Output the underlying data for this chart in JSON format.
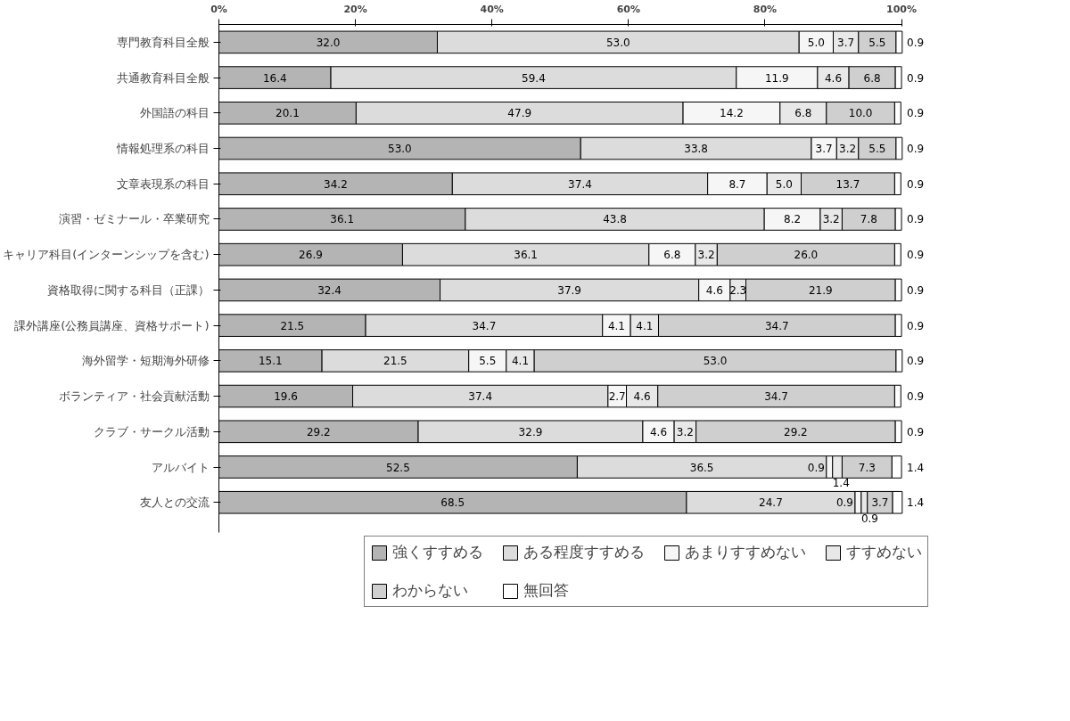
{
  "chart_data": {
    "type": "bar",
    "orientation": "horizontal",
    "stacked": true,
    "grid": false,
    "legend": "bottom",
    "categories": [
      "専門教育科目全般",
      "共通教育科目全般",
      "外国語の科目",
      "情報処理系の科目",
      "文章表現系の科目",
      "演習・ゼミナール・卒業研究",
      "キャリア科目(インターンシップを含む)",
      "資格取得に関する科目（正課）",
      "課外講座(公務員講座、資格サポート)",
      "海外留学・短期海外研修",
      "ボランティア・社会貢献活動",
      "クラブ・サークル活動",
      "アルバイト",
      "友人との交流"
    ],
    "xlim": [
      0,
      100
    ],
    "xticks": [
      {
        "value": 0,
        "label": "0%"
      },
      {
        "value": 20,
        "label": "20%"
      },
      {
        "value": 40,
        "label": "40%"
      },
      {
        "value": 60,
        "label": "60%"
      },
      {
        "value": 80,
        "label": "80%"
      },
      {
        "value": 100,
        "label": "100%"
      }
    ],
    "series": [
      {
        "name": "強くすすめる",
        "color": "#b4b4b4",
        "values": [
          32.0,
          16.4,
          20.1,
          53.0,
          34.2,
          36.1,
          26.9,
          32.4,
          21.5,
          15.1,
          19.6,
          29.2,
          52.5,
          68.5
        ],
        "value_labels": [
          "32.0",
          "16.4",
          "20.1",
          "53.0",
          "34.2",
          "36.1",
          "26.9",
          "32.4",
          "21.5",
          "15.1",
          "19.6",
          "29.2",
          "52.5",
          "68.5"
        ]
      },
      {
        "name": "ある程度すすめる",
        "color": "#dcdcdc",
        "values": [
          53.0,
          59.4,
          47.9,
          33.8,
          37.4,
          43.8,
          36.1,
          37.9,
          34.7,
          21.5,
          37.4,
          32.9,
          36.5,
          24.7
        ],
        "value_labels": [
          "53.0",
          "59.4",
          "47.9",
          "33.8",
          "37.4",
          "43.8",
          "36.1",
          "37.9",
          "34.7",
          "21.5",
          "37.4",
          "32.9",
          "36.5",
          "24.7"
        ]
      },
      {
        "name": "あまりすすめない",
        "color": "#f6f6f6",
        "values": [
          5.0,
          11.9,
          14.2,
          3.7,
          8.7,
          8.2,
          6.8,
          4.6,
          4.1,
          5.5,
          2.7,
          4.6,
          0.9,
          0.9
        ],
        "value_labels": [
          "5.0",
          "11.9",
          "14.2",
          "3.7",
          "8.7",
          "8.2",
          "6.8",
          "4.6",
          "4.1",
          "5.5",
          "2.7",
          "4.6",
          "0.9",
          "0.9"
        ]
      },
      {
        "name": "すすめない",
        "color": "#e8e8e8",
        "values": [
          3.7,
          4.6,
          6.8,
          3.2,
          5.0,
          3.2,
          3.2,
          2.3,
          4.1,
          4.1,
          4.6,
          3.2,
          1.4,
          0.9
        ],
        "value_labels": [
          "3.7",
          "4.6",
          "6.8",
          "3.2",
          "5.0",
          "3.2",
          "3.2",
          "2.3",
          "4.1",
          "4.1",
          "4.6",
          "3.2",
          "1.4",
          "0.9"
        ]
      },
      {
        "name": "わからない",
        "color": "#cfcfcf",
        "values": [
          5.5,
          6.8,
          10.0,
          5.5,
          13.7,
          7.8,
          26.0,
          21.9,
          34.7,
          53.0,
          34.7,
          29.2,
          7.3,
          3.7
        ],
        "value_labels": [
          "5.5",
          "6.8",
          "10.0",
          "5.5",
          "13.7",
          "7.8",
          "26.0",
          "21.9",
          "34.7",
          "53.0",
          "34.7",
          "29.2",
          "7.3",
          "3.7"
        ]
      },
      {
        "name": "無回答",
        "color": "#ffffff",
        "values": [
          0.9,
          0.9,
          0.9,
          0.9,
          0.9,
          0.9,
          0.9,
          0.9,
          0.9,
          0.9,
          0.9,
          0.9,
          1.4,
          1.4
        ],
        "value_labels": [
          "0.9",
          "0.9",
          "0.9",
          "0.9",
          "0.9",
          "0.9",
          "0.9",
          "0.9",
          "0.9",
          "0.9",
          "0.9",
          "0.9",
          "1.4",
          "1.4"
        ]
      }
    ]
  }
}
